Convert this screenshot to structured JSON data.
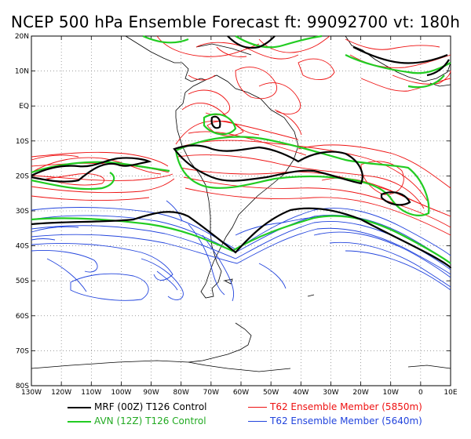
{
  "title": "NCEP 500 hPa Ensemble Forecast  ft: 99092700 vt: 180h",
  "map": {
    "lon_range": [
      -130,
      10
    ],
    "lat_range": [
      -80,
      20
    ],
    "lon_ticks": [
      "130W",
      "120W",
      "110W",
      "100W",
      "90W",
      "80W",
      "70W",
      "60W",
      "50W",
      "40W",
      "30W",
      "20W",
      "10W",
      "0",
      "10E"
    ],
    "lat_ticks": [
      "20N",
      "10N",
      "EQ",
      "10S",
      "20S",
      "30S",
      "40S",
      "50S",
      "60S",
      "70S",
      "80S"
    ],
    "grid": "dotted"
  },
  "legend": [
    {
      "label": "MRF (00Z) T126 Control",
      "color": "#000000"
    },
    {
      "label": "AVN (12Z) T126 Control",
      "color": "#22cc22"
    },
    {
      "label": "T62 Ensemble Member (5850m)",
      "color": "#ee1111"
    },
    {
      "label": "T62 Ensemble Member (5640m)",
      "color": "#2244dd"
    }
  ]
}
